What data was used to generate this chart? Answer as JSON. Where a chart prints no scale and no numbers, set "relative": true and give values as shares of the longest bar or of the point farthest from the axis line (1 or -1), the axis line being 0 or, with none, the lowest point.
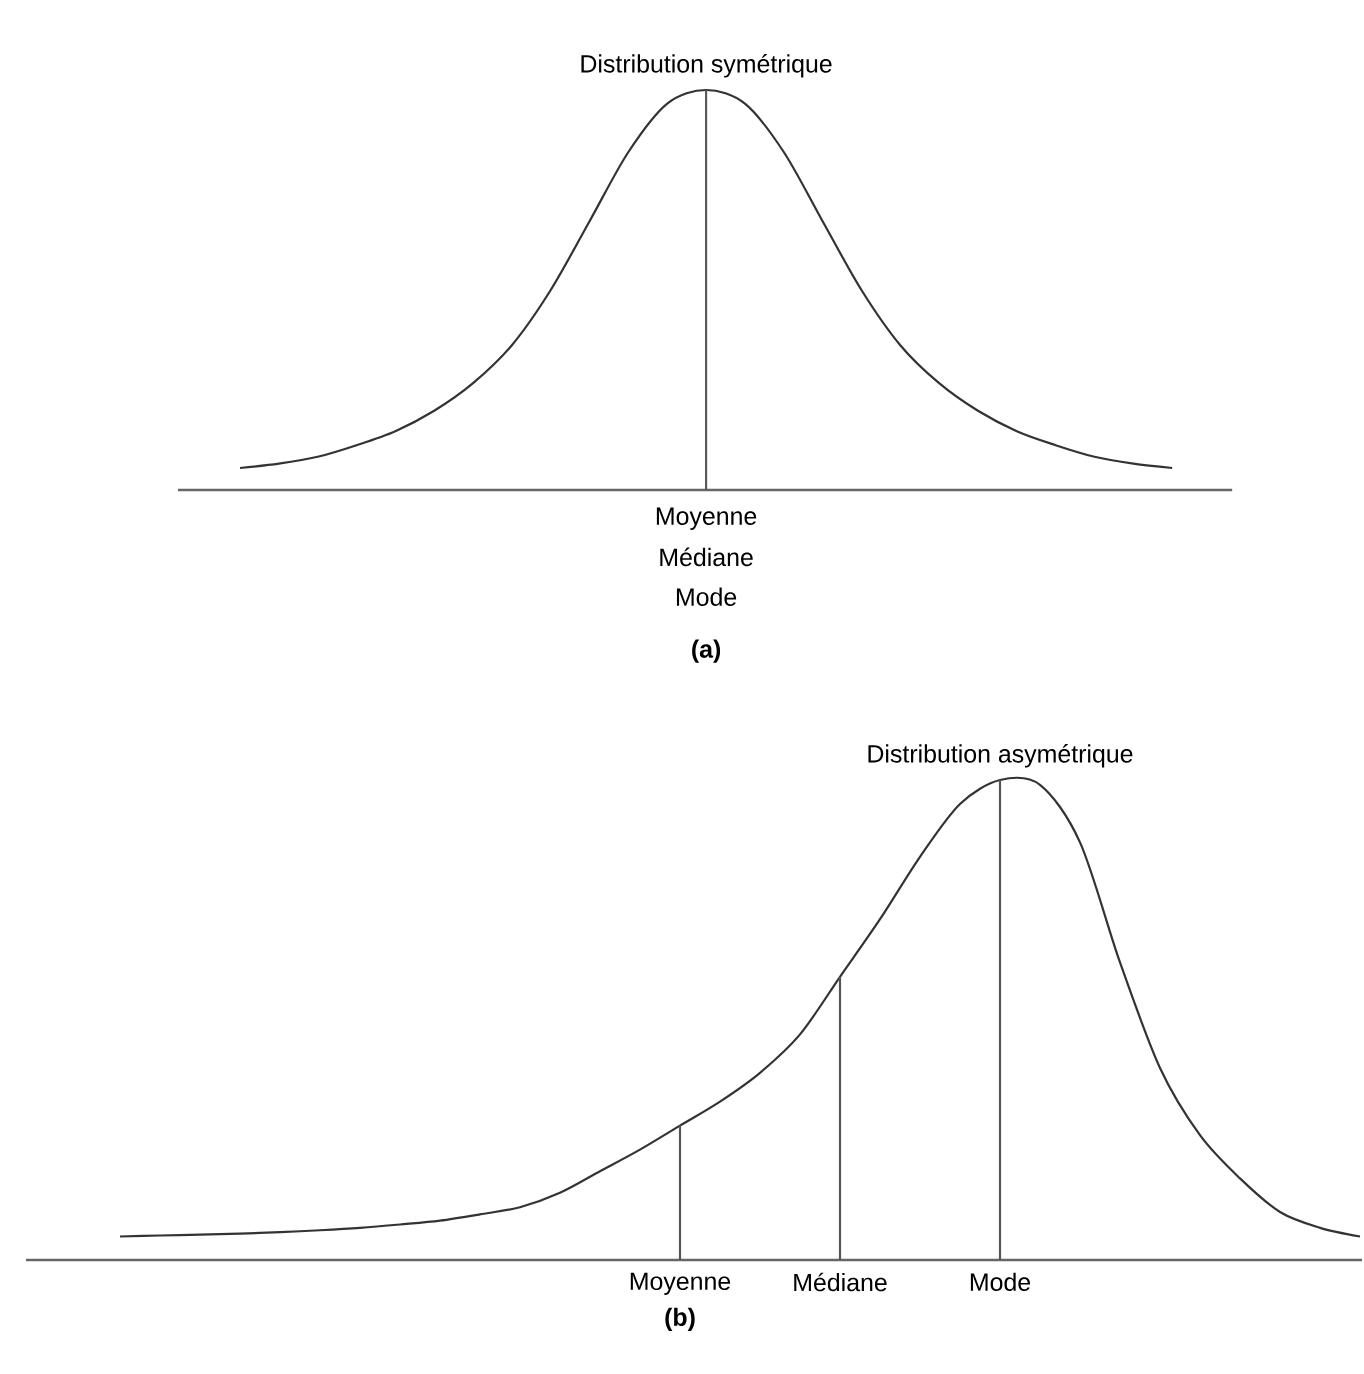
{
  "chart_data": [
    {
      "type": "line",
      "title": "Distribution symétrique",
      "relative": true,
      "categories": [
        null,
        null,
        null,
        null,
        null,
        null,
        null,
        null,
        null,
        null,
        null,
        null,
        null,
        null,
        null,
        null,
        null,
        null,
        null,
        null,
        null,
        null,
        null,
        null,
        null
      ],
      "series": [
        {
          "color": "#333333",
          "values": [
            0.055,
            0.066,
            0.083,
            0.112,
            0.147,
            0.198,
            0.267,
            0.362,
            0.5,
            0.672,
            0.845,
            0.966,
            1,
            0.966,
            0.845,
            0.672,
            0.5,
            0.362,
            0.267,
            0.198,
            0.147,
            0.112,
            0.083,
            0.066,
            0.055
          ]
        }
      ],
      "annotations": [
        "Moyenne",
        "Médiane",
        "Mode",
        "(a)"
      ]
    },
    {
      "type": "line",
      "title": "Distribution asymétrique",
      "relative": true,
      "categories": [
        null,
        null,
        null,
        null,
        null,
        null,
        null,
        null,
        null,
        null,
        null,
        null,
        null,
        null,
        "Moyenne",
        null,
        null,
        null,
        "Médiane",
        null,
        null,
        null,
        "Mode",
        null,
        null,
        null,
        null,
        null,
        null,
        null,
        null,
        null
      ],
      "series": [
        {
          "color": "#333333",
          "values": [
            0.049,
            0.051,
            0.053,
            0.055,
            0.058,
            0.062,
            0.067,
            0.074,
            0.082,
            0.095,
            0.11,
            0.14,
            0.185,
            0.23,
            0.28,
            0.33,
            0.39,
            0.47,
            0.59,
            0.71,
            0.84,
            0.95,
            1,
            0.99,
            0.87,
            0.62,
            0.4,
            0.26,
            0.17,
            0.1,
            0.067,
            0.049
          ]
        }
      ],
      "ref_lines": [
        {
          "axis": "x",
          "value": "Moyenne",
          "color": "#555555"
        },
        {
          "axis": "x",
          "value": "Médiane",
          "color": "#555555"
        },
        {
          "axis": "x",
          "value": "Mode",
          "color": "#555555"
        }
      ],
      "annotations": [
        "(b)"
      ]
    }
  ]
}
